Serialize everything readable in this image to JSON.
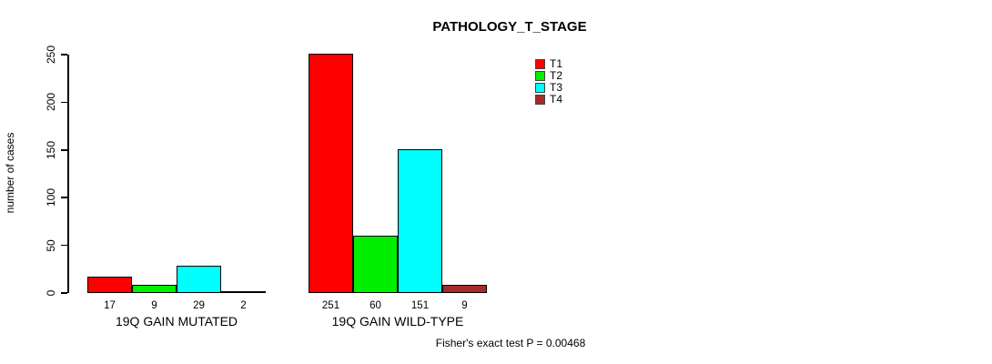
{
  "header": {
    "title": "PATHOLOGY_T_STAGE"
  },
  "footer": {
    "annotation": "Fisher's exact test P = 0.00468"
  },
  "chart_data": {
    "type": "bar",
    "title": "PATHOLOGY_T_STAGE",
    "xlabel": "",
    "ylabel": "number of cases",
    "ylim": [
      0,
      250
    ],
    "yticks": [
      0,
      50,
      100,
      150,
      200,
      250
    ],
    "grid": false,
    "legend_position": "top-right",
    "bar_value_labels": true,
    "categories": [
      "19Q GAIN MUTATED",
      "19Q GAIN WILD-TYPE"
    ],
    "series": [
      {
        "name": "T1",
        "color": "#ff0000",
        "values": [
          17,
          251
        ]
      },
      {
        "name": "T2",
        "color": "#00ee00",
        "values": [
          9,
          60
        ]
      },
      {
        "name": "T3",
        "color": "#00ffff",
        "values": [
          29,
          151
        ]
      },
      {
        "name": "T4",
        "color": "#a52a2a",
        "values": [
          2,
          9
        ]
      }
    ],
    "annotation": "Fisher's exact test P = 0.00468"
  }
}
